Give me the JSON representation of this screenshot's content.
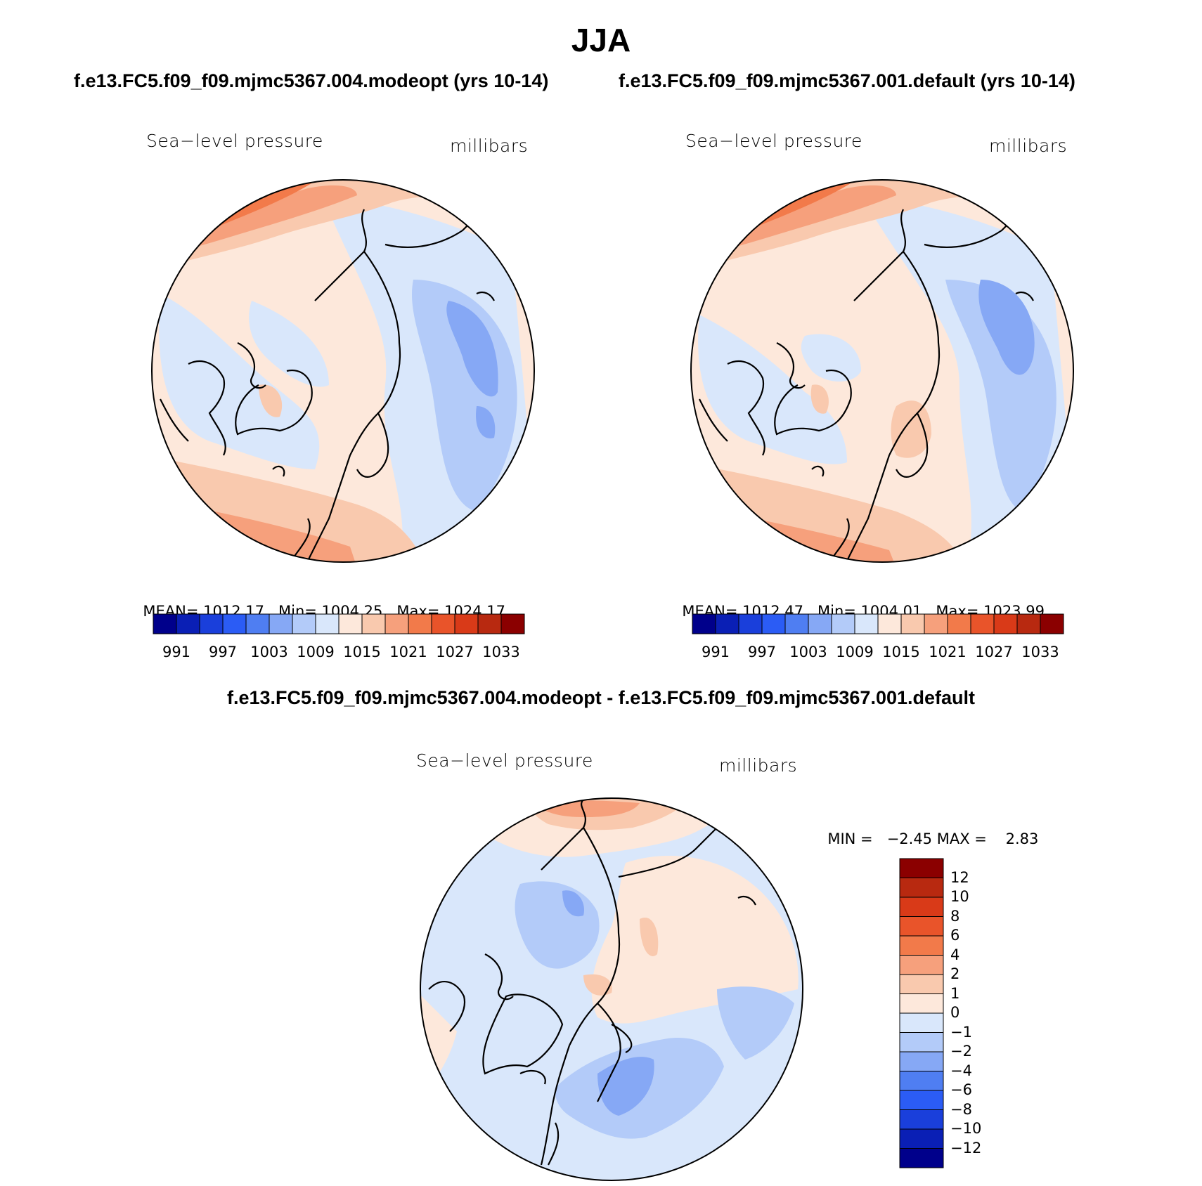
{
  "title": "JJA",
  "case_titles": [
    "f.e13.FC5.f09_f09.mjmc5367.004.modeopt (yrs 10-14)",
    "f.e13.FC5.f09_f09.mjmc5367.001.default (yrs 10-14)"
  ],
  "diff_title": "f.e13.FC5.f09_f09.mjmc5367.004.modeopt - f.e13.FC5.f09_f09.mjmc5367.001.default",
  "panels": [
    {
      "variable": "Sea−level pressure",
      "units": "millibars",
      "stats": {
        "mean_label": "MEAN=",
        "mean": "1012.17",
        "min_label": "Min=",
        "min": "1004.25",
        "max_label": "Max=",
        "max": "1024.17"
      }
    },
    {
      "variable": "Sea−level pressure",
      "units": "millibars",
      "stats": {
        "mean_label": "MEAN=",
        "mean": "1012.47",
        "min_label": "Min=",
        "min": "1004.01",
        "max_label": "Max=",
        "max": "1023.99"
      }
    }
  ],
  "diff_panel": {
    "variable": "Sea−level pressure",
    "units": "millibars",
    "stats": {
      "min_label": "MIN =",
      "min": "−2.45",
      "max_label": "MAX =",
      "max": "2.83"
    }
  },
  "colorbar_levels": {
    "fields": [
      "991",
      "997",
      "1003",
      "1009",
      "1015",
      "1021",
      "1027",
      "1033"
    ],
    "diff": [
      "12",
      "10",
      "8",
      "6",
      "4",
      "2",
      "1",
      "0",
      "−1",
      "−2",
      "−4",
      "−6",
      "−8",
      "−10",
      "−12"
    ]
  },
  "colors": {
    "field_scale": [
      "#00008b",
      "#0a1fb5",
      "#1a3fdb",
      "#2b5cf5",
      "#4f7ef2",
      "#86a8f5",
      "#b3cbf9",
      "#d9e7fb",
      "#fde8db",
      "#f9c9ae",
      "#f6a07c",
      "#f27a4a",
      "#e9542a",
      "#d93a18",
      "#b82910",
      "#8b0000"
    ],
    "diff_scale": [
      "#8b0000",
      "#b82910",
      "#d93a18",
      "#e9542a",
      "#f27a4a",
      "#f6a07c",
      "#f9c9ae",
      "#fde8db",
      "#d9e7fb",
      "#b3cbf9",
      "#86a8f5",
      "#4f7ef2",
      "#2b5cf5",
      "#1a3fdb",
      "#0a1fb5",
      "#00008b"
    ],
    "coastline": "#000000"
  }
}
